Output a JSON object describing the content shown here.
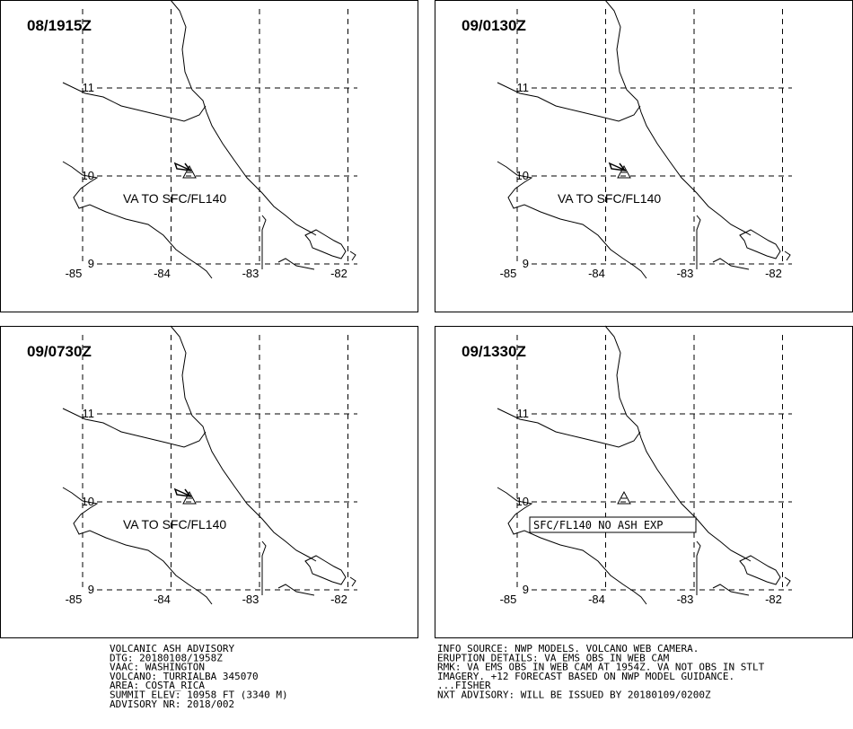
{
  "panels": [
    {
      "time": "08/1915Z",
      "label": "VA TO SFC/FL140",
      "ash_area": true,
      "boxed": false
    },
    {
      "time": "09/0130Z",
      "label": "VA TO SFC/FL140",
      "ash_area": true,
      "boxed": false
    },
    {
      "time": "09/0730Z",
      "label": "VA TO SFC/FL140",
      "ash_area": true,
      "boxed": false
    },
    {
      "time": "09/1330Z",
      "label": "SFC/FL140 NO ASH EXP",
      "ash_area": false,
      "boxed": true
    }
  ],
  "lat_labels": [
    11,
    10,
    9
  ],
  "lon_labels": [
    -85,
    -84,
    -83,
    -82
  ],
  "advisory_left": [
    "VOLCANIC ASH ADVISORY",
    "DTG: 20180108/1958Z",
    "VAAC: WASHINGTON",
    "VOLCANO: TURRIALBA 345070",
    "AREA: COSTA_RICA",
    "SUMMIT ELEV: 10958 FT (3340 M)",
    "ADVISORY NR: 2018/002"
  ],
  "advisory_right": [
    "INFO SOURCE: NWP MODELS. VOLCANO WEB CAMERA.",
    "ERUPTION DETAILS: VA EMS OBS IN WEB CAM",
    "RMK: VA EMS OBS IN WEB CAM AT 1954Z. VA NOT OBS IN STLT",
    "IMAGERY. +12 FORECAST BASED ON NWP MODEL GUIDANCE.",
    "...FISHER",
    "NXT ADVISORY: WILL BE ISSUED BY 20180109/0200Z"
  ]
}
